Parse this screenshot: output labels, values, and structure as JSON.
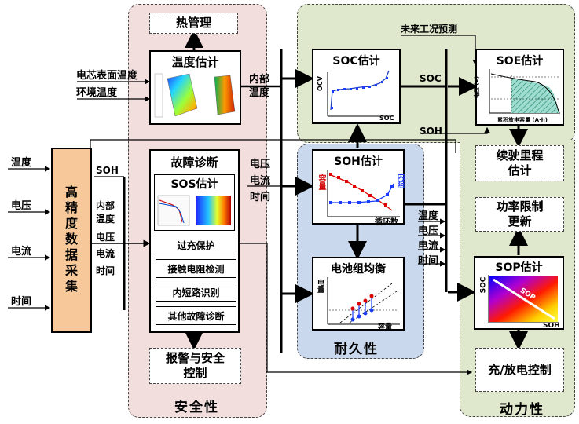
{
  "regions": {
    "safety": "安全性",
    "durability": "耐久性",
    "power": "动力性"
  },
  "inputs": [
    "温度",
    "电压",
    "电流",
    "时间"
  ],
  "acquisition": "高精度数据采集",
  "thermal_mgmt": "热管理",
  "temp_est": {
    "title": "温度估计",
    "in_surface": "电芯表面温度",
    "in_ambient": "环境温度",
    "out_internal": "内部温度"
  },
  "fault": {
    "title": "故障诊断",
    "sos_title": "SOS估计",
    "items": [
      "过充保护",
      "接触电阻检测",
      "内短路识别",
      "其他故障诊断"
    ],
    "in_soh": "SOH",
    "in_internal_temp": "内部温度",
    "in_voltage": "电压",
    "in_current": "电流",
    "in_time": "时间"
  },
  "alarm": "报警与安全控制",
  "soc": {
    "title": "SOC估计",
    "ylabel": "OCV",
    "xlabel": "SOC",
    "out": "SOC"
  },
  "soh": {
    "title": "SOH估计",
    "left_axis": "容量",
    "right_axis": "内阻",
    "xlabel": "循环数",
    "in_voltage": "电压",
    "in_current": "电流",
    "in_time": "时间",
    "out": "SOH"
  },
  "balance": {
    "title": "电池组均衡",
    "ylabel": "电量",
    "xlabel": "容量"
  },
  "soe": {
    "title": "SOE估计",
    "ylabel": "电压 (V)",
    "xlabel": "累积放电容量 (A·h)",
    "future": "未来工况预测"
  },
  "range": "续驶里程估计",
  "power_update": "功率限制更新",
  "sop": {
    "title": "SOP估计",
    "ylabel": "SOC",
    "xlabel": "SOH",
    "inner": "SOP",
    "in_temp": "温度",
    "in_voltage": "电压",
    "in_current": "电流",
    "in_time": "时间"
  },
  "charge_ctrl": "充/放电控制",
  "colors": {
    "safety_bg": "#f3dede",
    "durability_bg": "#c9d8ec",
    "power_bg": "#dfe8cc",
    "acq_bg": "#f7c99a"
  }
}
